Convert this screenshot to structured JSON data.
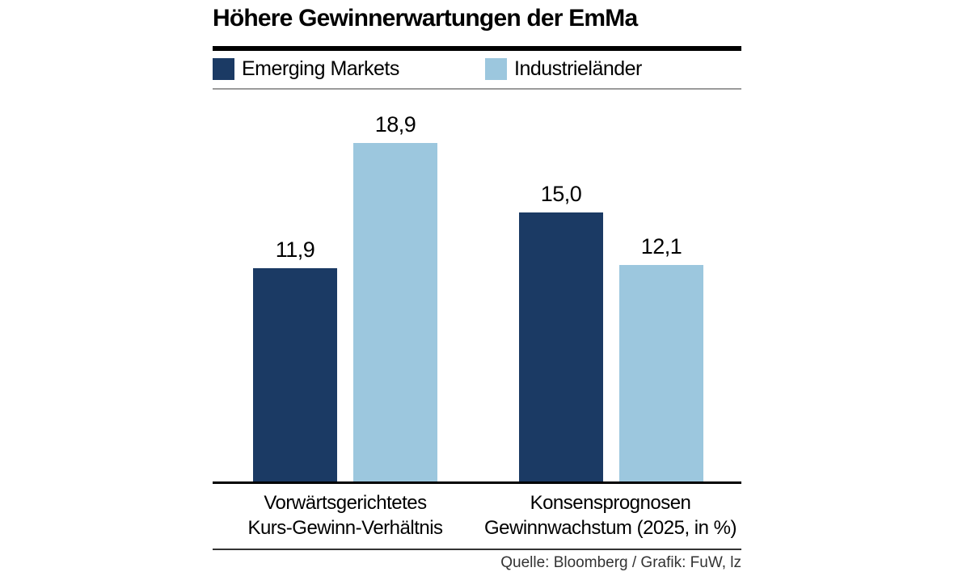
{
  "title": "Höhere Gewinnerwartungen der EmMa",
  "legend": [
    {
      "label": "Emerging Markets",
      "color": "#1b3a64"
    },
    {
      "label": "Industrieländer",
      "color": "#9cc7de"
    }
  ],
  "source": "Quelle: Bloomberg / Grafik: FuW, lz",
  "colors": {
    "emerging_markets": "#1b3a64",
    "industrielaender": "#9cc7de",
    "title_rule": "#000000",
    "legend_rule": "#9b9b9b",
    "axis": "#000000"
  },
  "chart_data": {
    "type": "bar",
    "categories": [
      [
        "Vorwärtsgerichtetes",
        "Kurs-Gewinn-Verhältnis"
      ],
      [
        "Konsensprognosen",
        "Gewinnwachstum (2025, in %)"
      ]
    ],
    "series": [
      {
        "name": "Emerging Markets",
        "color": "#1b3a64",
        "values": [
          11.9,
          15.0
        ]
      },
      {
        "name": "Industrieländer",
        "color": "#9cc7de",
        "values": [
          18.9,
          12.1
        ]
      }
    ],
    "value_labels": [
      [
        "11,9",
        "15,0"
      ],
      [
        "18,9",
        "12,1"
      ]
    ],
    "decimal_separator": ",",
    "ylim": [
      0,
      18.9
    ],
    "grid": false,
    "axes_ticks_shown": false,
    "legend_position": "top",
    "value_labels_position": "above-bars"
  }
}
